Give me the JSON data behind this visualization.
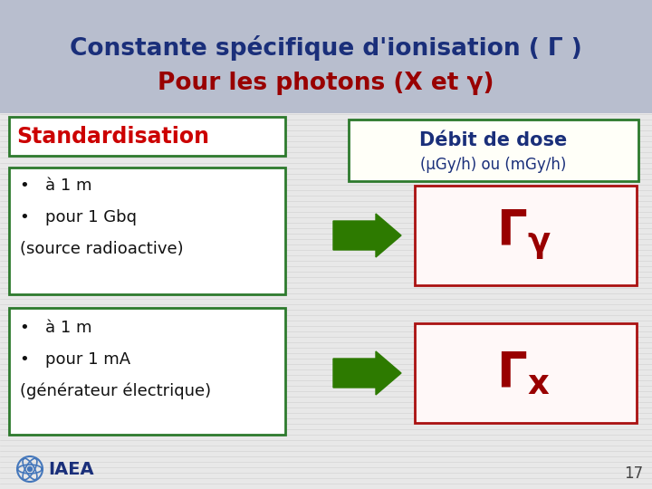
{
  "title_line1": "Constante spécifique d'ionisation ( Γ )",
  "title_line2": "Pour les photons (X et γ)",
  "title_line1_color": "#1a2f7a",
  "title_line2_color": "#990000",
  "bg_color": "#d8dae0",
  "header_bg_color": "#b8bece",
  "body_bg_color": "#e8e8e8",
  "box_border_color": "#2d7a2d",
  "red_box_border_color": "#aa1111",
  "standardisation_text": "Standardisation",
  "standardisation_color": "#cc0000",
  "debit_title": "Débit de dose",
  "debit_subtitle": "(μGy/h) ou (mGy/h)",
  "debit_title_color": "#1a2f7a",
  "debit_subtitle_color": "#1a2f7a",
  "bullet1_line1": "•   à 1 m",
  "bullet1_line2": "•   pour 1 Gbq",
  "bullet1_line3": "(source radioactive)",
  "bullet2_line1": "•   à 1 m",
  "bullet2_line2": "•   pour 1 mA",
  "bullet2_line3": "(générateur électrique)",
  "bullet_text_color": "#111111",
  "arrow_color": "#2d7a00",
  "gamma_color": "#990000",
  "page_number": "17",
  "iaea_text": "IAEA",
  "footer_text_color": "#1a2f7a",
  "iaea_logo_color": "#4477bb"
}
